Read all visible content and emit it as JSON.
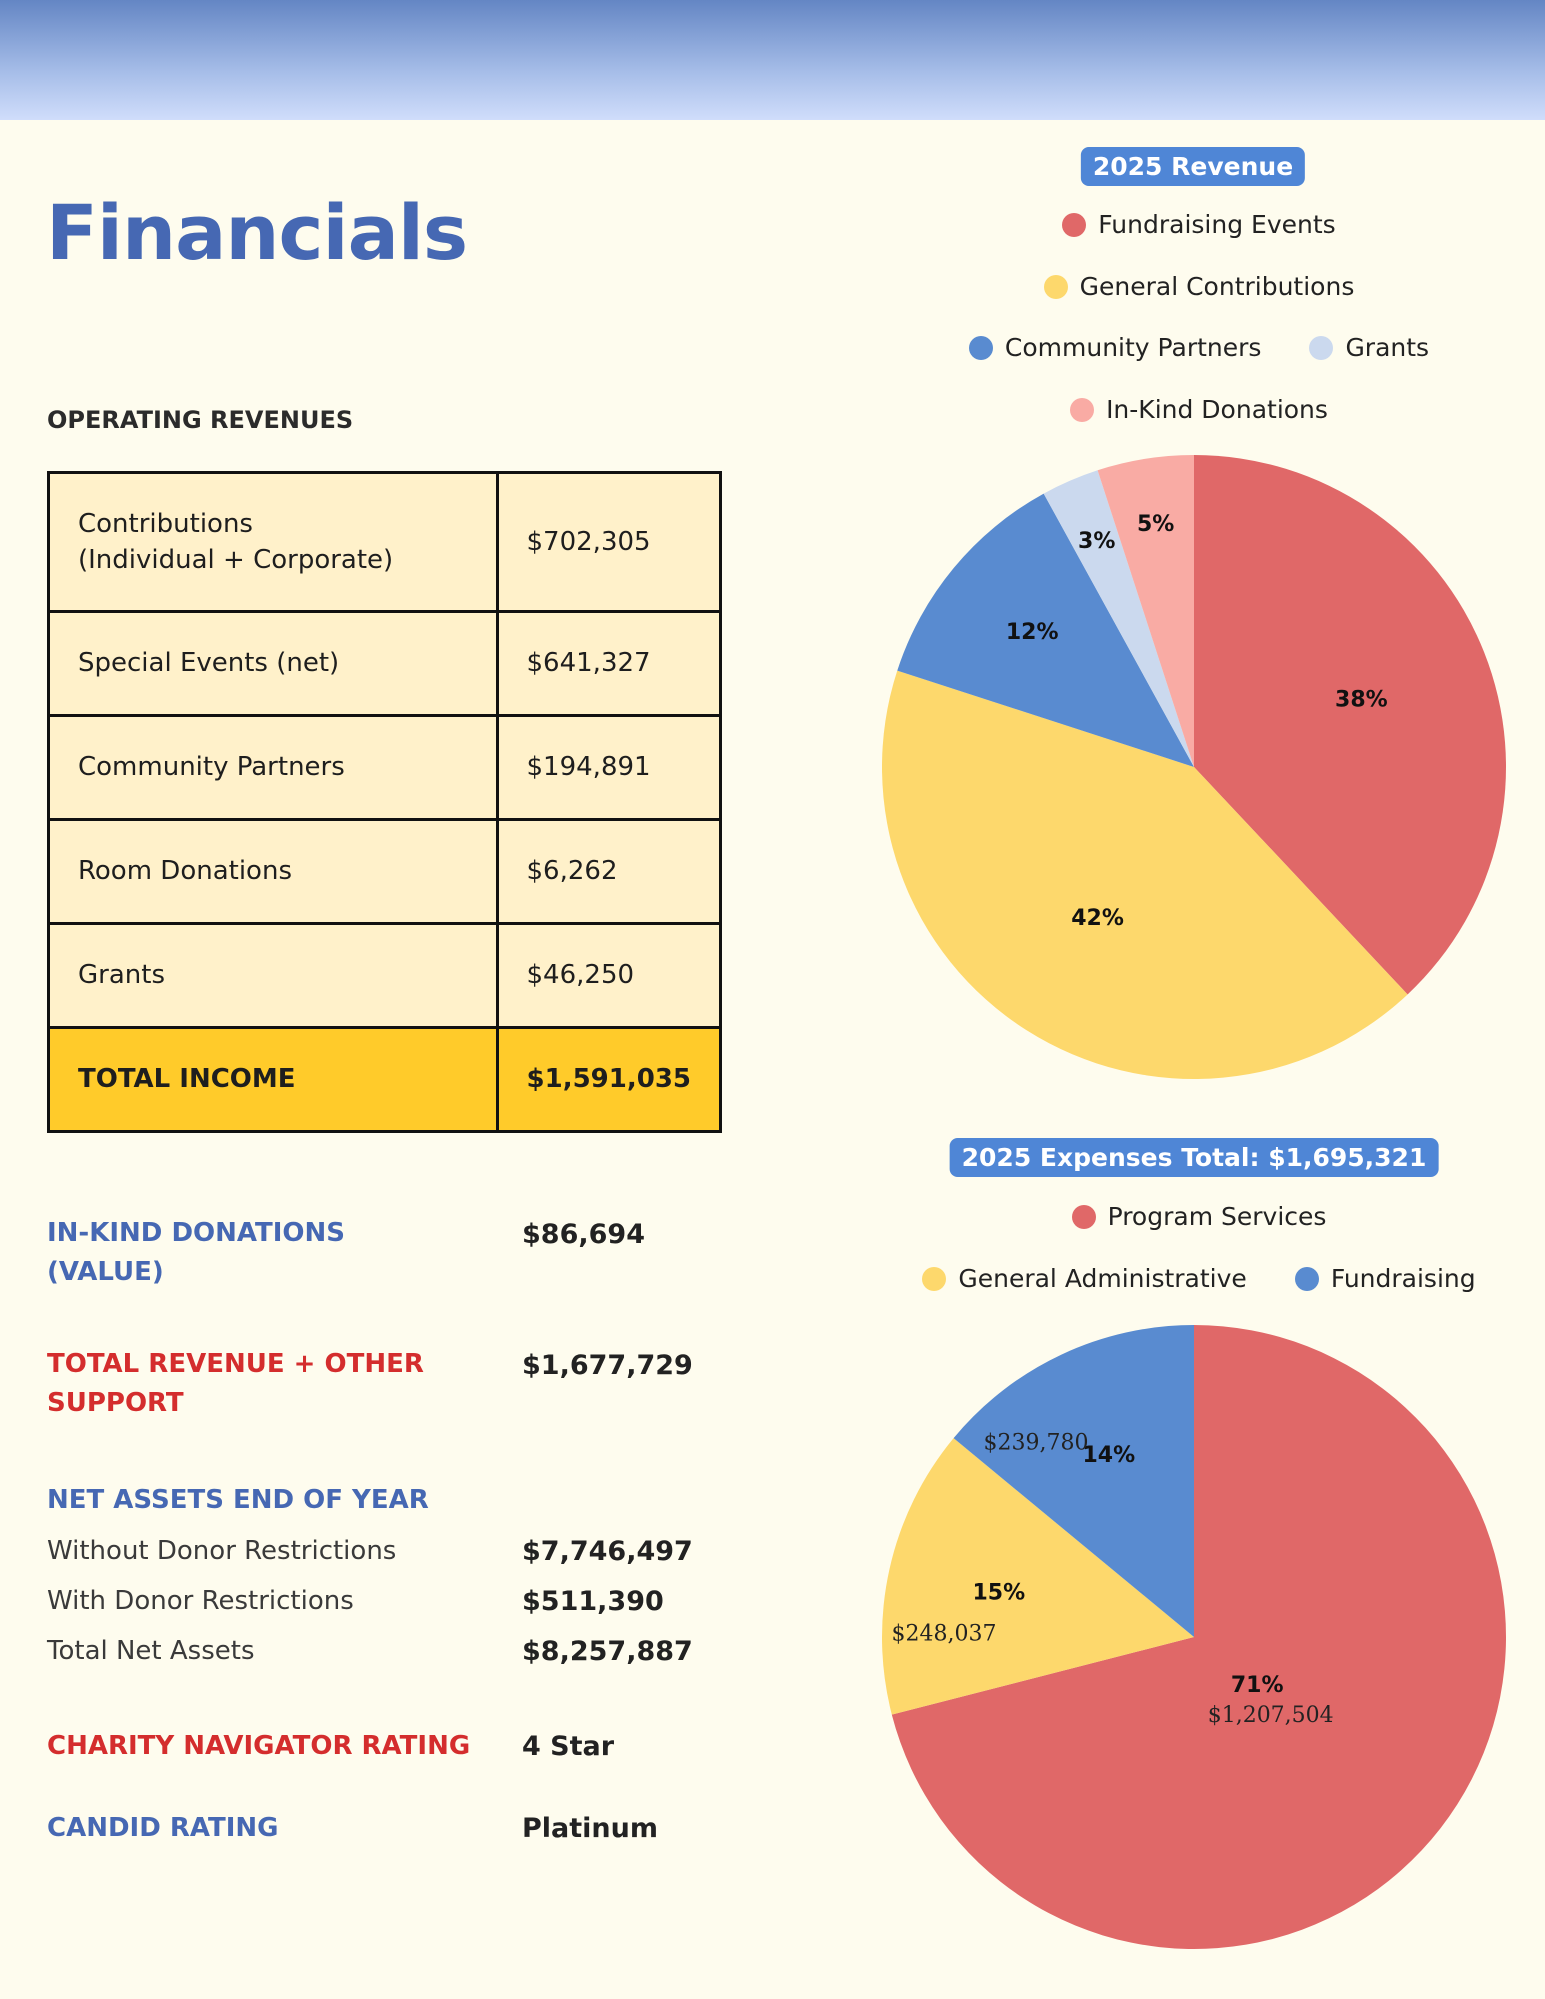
{
  "title": "Financials",
  "operating_revenues": {
    "heading": "OPERATING REVENUES",
    "rows": [
      {
        "label": [
          "Contributions",
          "(Individual + Corporate)"
        ],
        "value": "$702,305"
      },
      {
        "label": [
          "Special Events (net)"
        ],
        "value": "$641,327"
      },
      {
        "label": [
          "Community Partners"
        ],
        "value": "$194,891"
      },
      {
        "label": [
          "Room Donations"
        ],
        "value": "$6,262"
      },
      {
        "label": [
          "Grants"
        ],
        "value": "$46,250"
      }
    ],
    "total_label": "TOTAL INCOME",
    "total_value": "$1,591,035"
  },
  "in_kind": {
    "label": [
      "IN-KIND DONATIONS",
      "(VALUE)"
    ],
    "value": "$86,694"
  },
  "total_revenue": {
    "label": [
      "TOTAL REVENUE + OTHER",
      "SUPPORT"
    ],
    "value": "$1,677,729"
  },
  "net_assets": {
    "heading": "NET ASSETS END OF YEAR",
    "rows": [
      {
        "label": "Without Donor Restrictions",
        "value": "$7,746,497"
      },
      {
        "label": "With Donor Restrictions",
        "value": "$511,390"
      },
      {
        "label": "Total Net Assets",
        "value": "$8,257,887"
      }
    ]
  },
  "charity_navigator": {
    "label": "CHARITY NAVIGATOR RATING",
    "value": "4 Star"
  },
  "candid": {
    "label": "CANDID RATING",
    "value": "Platinum"
  },
  "colors": {
    "red": "#e06868",
    "yellow": "#fdd86c",
    "blue": "#598bd0",
    "lightblue": "#cbd9ee",
    "pink": "#f9aba4"
  },
  "chart_data": [
    {
      "type": "pie",
      "title": "2025 Revenue",
      "legend": [
        [
          "Fundraising Events"
        ],
        [
          "General Contributions"
        ],
        [
          "Community Partners",
          "Grants"
        ],
        [
          "In-Kind Donations"
        ]
      ],
      "slices": [
        {
          "name": "Fundraising Events",
          "value": 38,
          "label": "38%",
          "color": "#e06868"
        },
        {
          "name": "General Contributions",
          "value": 42,
          "label": "42%",
          "color": "#fdd86c"
        },
        {
          "name": "Community Partners",
          "value": 12,
          "label": "12%",
          "color": "#598bd0"
        },
        {
          "name": "Grants",
          "value": 3,
          "label": "3%",
          "color": "#cbd9ee"
        },
        {
          "name": "In-Kind Donations",
          "value": 5,
          "label": "5%",
          "color": "#f9aba4"
        }
      ]
    },
    {
      "type": "pie",
      "title": "2025 Expenses Total: $1,695,321",
      "legend": [
        [
          "Program Services"
        ],
        [
          "General Administrative",
          "Fundraising"
        ]
      ],
      "slices": [
        {
          "name": "Program Services",
          "value": 71,
          "label": "71%",
          "amount": "$1,207,504",
          "color": "#e06868"
        },
        {
          "name": "General Administrative",
          "value": 15,
          "label": "15%",
          "amount": "$248,037",
          "color": "#fdd86c"
        },
        {
          "name": "Fundraising",
          "value": 14,
          "label": "14%",
          "amount": "$239,780",
          "color": "#598bd0"
        }
      ]
    }
  ]
}
